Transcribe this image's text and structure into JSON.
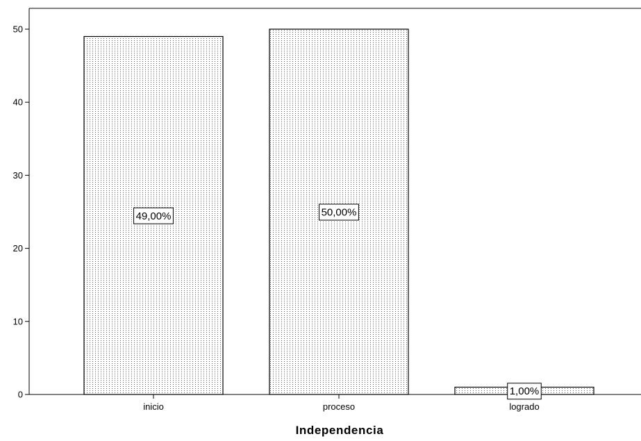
{
  "chart_data": {
    "type": "bar",
    "title": "",
    "xlabel": "Independencia",
    "ylabel": "",
    "categories": [
      "inicio",
      "proceso",
      "logrado"
    ],
    "values": [
      49,
      50,
      1
    ],
    "data_labels": [
      "49,00%",
      "50,00%",
      "1,00%"
    ],
    "ylim": [
      0,
      55
    ],
    "yticks": [
      0,
      10,
      20,
      30,
      40,
      50
    ],
    "ytick_labels": [
      "0",
      "10",
      "20",
      "30",
      "40",
      "50"
    ],
    "grid": false,
    "legend": "none",
    "bar_fill": "dotted-pattern",
    "colors": {
      "bar_stroke": "#000000",
      "bar_dots": "#555555",
      "axis": "#000000",
      "background": "#ffffff"
    }
  }
}
